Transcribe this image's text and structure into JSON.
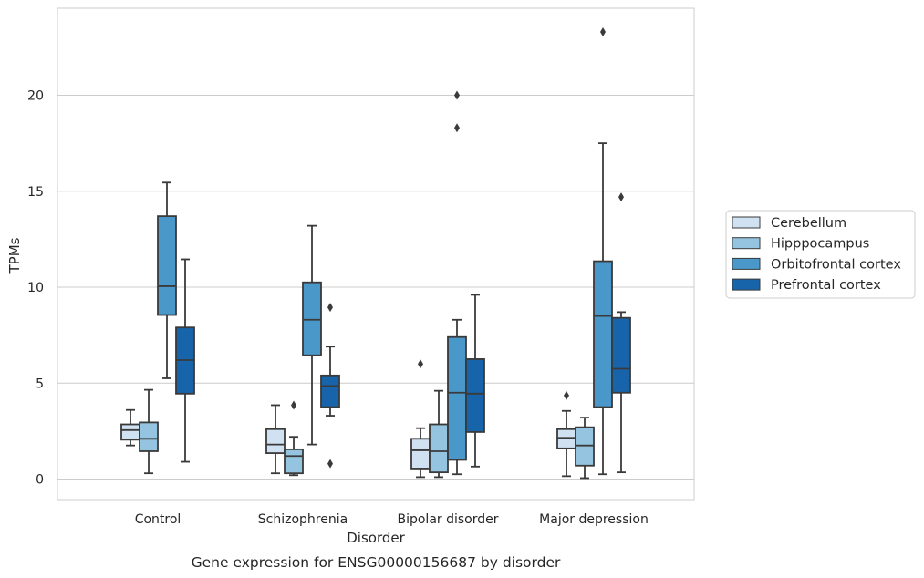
{
  "caption": "Gene expression for ENSG00000156687 by disorder",
  "colors": {
    "Cerebellum": "#d0e1f2",
    "Hipppocampus": "#94c4df",
    "Orbitofrontal cortex": "#4a98c9",
    "Prefrontal cortex": "#1764ab",
    "line": "#3a3a3a",
    "grid": "#cccccc",
    "frame": "#cccccc"
  },
  "chart_data": {
    "type": "box",
    "xlabel": "Disorder",
    "ylabel": "TPMs",
    "ylim": [
      -1.0,
      24.6
    ],
    "yticks": [
      0,
      5,
      10,
      15,
      20
    ],
    "grid": "horizontal",
    "legend_position": "right",
    "categories": [
      "Control",
      "Schizophrenia",
      "Bipolar disorder",
      "Major depression"
    ],
    "series": [
      {
        "name": "Cerebellum",
        "boxes": [
          {
            "whislo": 1.75,
            "q1": 2.05,
            "med": 2.55,
            "q3": 2.85,
            "whishi": 3.6,
            "fliers": []
          },
          {
            "whislo": 0.3,
            "q1": 1.35,
            "med": 1.8,
            "q3": 2.6,
            "whishi": 3.85,
            "fliers": []
          },
          {
            "whislo": 0.1,
            "q1": 0.55,
            "med": 1.5,
            "q3": 2.1,
            "whishi": 2.65,
            "fliers": [
              6.0
            ]
          },
          {
            "whislo": 0.15,
            "q1": 1.6,
            "med": 2.15,
            "q3": 2.6,
            "whishi": 3.55,
            "fliers": [
              4.35
            ]
          }
        ]
      },
      {
        "name": "Hipppocampus",
        "boxes": [
          {
            "whislo": 0.3,
            "q1": 1.45,
            "med": 2.1,
            "q3": 2.95,
            "whishi": 4.65,
            "fliers": []
          },
          {
            "whislo": 0.2,
            "q1": 0.3,
            "med": 1.2,
            "q3": 1.55,
            "whishi": 2.2,
            "fliers": [
              3.85
            ]
          },
          {
            "whislo": 0.1,
            "q1": 0.35,
            "med": 1.45,
            "q3": 2.85,
            "whishi": 4.6,
            "fliers": []
          },
          {
            "whislo": 0.05,
            "q1": 0.7,
            "med": 1.75,
            "q3": 2.7,
            "whishi": 3.2,
            "fliers": []
          }
        ]
      },
      {
        "name": "Orbitofrontal cortex",
        "boxes": [
          {
            "whislo": 5.25,
            "q1": 8.55,
            "med": 10.05,
            "q3": 13.7,
            "whishi": 15.45,
            "fliers": []
          },
          {
            "whislo": 1.8,
            "q1": 6.45,
            "med": 8.3,
            "q3": 10.25,
            "whishi": 13.2,
            "fliers": []
          },
          {
            "whislo": 0.25,
            "q1": 1.0,
            "med": 4.5,
            "q3": 7.4,
            "whishi": 8.3,
            "fliers": [
              18.3,
              20.0
            ]
          },
          {
            "whislo": 0.25,
            "q1": 3.75,
            "med": 8.5,
            "q3": 11.35,
            "whishi": 17.5,
            "fliers": [
              23.3
            ]
          }
        ]
      },
      {
        "name": "Prefrontal cortex",
        "boxes": [
          {
            "whislo": 0.9,
            "q1": 4.45,
            "med": 6.2,
            "q3": 7.9,
            "whishi": 11.45,
            "fliers": []
          },
          {
            "whislo": 3.3,
            "q1": 3.75,
            "med": 4.85,
            "q3": 5.4,
            "whishi": 6.9,
            "fliers": [
              0.8,
              8.95
            ]
          },
          {
            "whislo": 0.65,
            "q1": 2.45,
            "med": 4.45,
            "q3": 6.25,
            "whishi": 9.6,
            "fliers": []
          },
          {
            "whislo": 0.35,
            "q1": 4.5,
            "med": 5.75,
            "q3": 8.4,
            "whishi": 8.7,
            "fliers": [
              14.7
            ]
          }
        ]
      }
    ]
  }
}
